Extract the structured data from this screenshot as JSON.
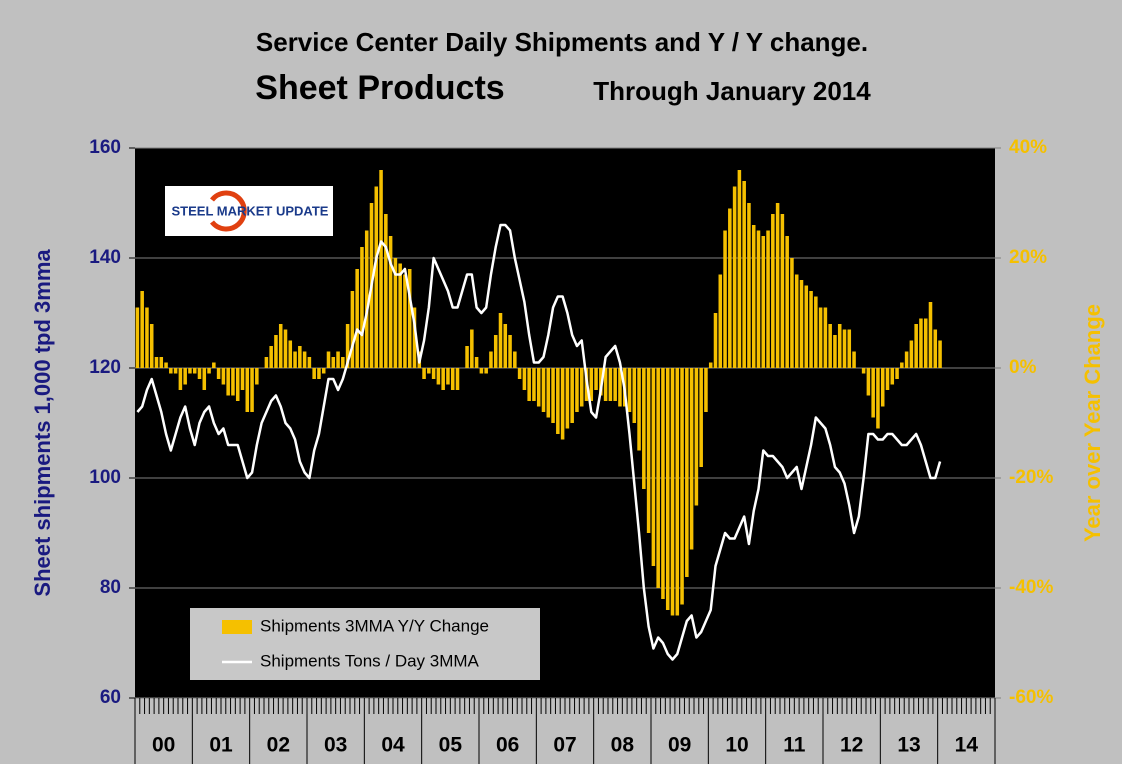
{
  "chart_data": {
    "type": "combo",
    "title": "Service Center Daily Shipments and Y / Y change.",
    "subtitle": "Sheet Products",
    "subtitle_note": "Through January 2014",
    "logo": "STEEL MARKET UPDATE",
    "ylabel": "Sheet shipments 1,000 tpd 3mma",
    "y2label": "Year over Year Change",
    "year_labels": [
      "00",
      "01",
      "02",
      "03",
      "04",
      "05",
      "06",
      "07",
      "08",
      "09",
      "10",
      "11",
      "12",
      "13",
      "14"
    ],
    "ylim": [
      60,
      160
    ],
    "yticks": [
      60,
      80,
      100,
      120,
      140,
      160
    ],
    "y2lim": [
      -60,
      40
    ],
    "y2ticks": [
      {
        "value": -60,
        "label": "-60%"
      },
      {
        "value": -40,
        "label": "-40%"
      },
      {
        "value": -20,
        "label": "-20%"
      },
      {
        "value": 0,
        "label": "0%"
      },
      {
        "value": 20,
        "label": "20%"
      },
      {
        "value": 40,
        "label": "40%"
      }
    ],
    "series": [
      {
        "name": "Shipments 3MMA Y/Y Change",
        "type": "bar",
        "axis": "y2",
        "color": "#f5c000",
        "values": [
          11,
          14,
          11,
          8,
          2,
          2,
          1,
          -1,
          -1,
          -4,
          -3,
          -1,
          -1,
          -2,
          -4,
          -1,
          1,
          -2,
          -3,
          -5,
          -5,
          -6,
          -4,
          -8,
          -8,
          -3,
          0,
          2,
          4,
          6,
          8,
          7,
          5,
          3,
          4,
          3,
          2,
          -2,
          -2,
          -1,
          3,
          2,
          3,
          2,
          8,
          14,
          18,
          22,
          25,
          30,
          33,
          36,
          28,
          24,
          20,
          19,
          17,
          18,
          11,
          3,
          -2,
          -1,
          -2,
          -3,
          -4,
          -3,
          -4,
          -4,
          0,
          4,
          7,
          2,
          -1,
          -1,
          3,
          6,
          10,
          8,
          6,
          3,
          -2,
          -4,
          -6,
          -6,
          -7,
          -8,
          -9,
          -10,
          -12,
          -13,
          -11,
          -10,
          -8,
          -7,
          -6,
          -6,
          -4,
          -5,
          -6,
          -6,
          -6,
          -7,
          -7,
          -8,
          -10,
          -15,
          -22,
          -30,
          -36,
          -40,
          -42,
          -44,
          -45,
          -45,
          -43,
          -38,
          -33,
          -25,
          -18,
          -8,
          1,
          10,
          17,
          25,
          29,
          33,
          36,
          34,
          30,
          26,
          25,
          24,
          25,
          28,
          30,
          28,
          24,
          20,
          17,
          16,
          15,
          14,
          13,
          11,
          11,
          8,
          6,
          8,
          7,
          7,
          3,
          0,
          -1,
          -5,
          -9,
          -11,
          -7,
          -4,
          -3,
          -2,
          1,
          3,
          5,
          8,
          9,
          9,
          12,
          7,
          5
        ]
      },
      {
        "name": "Shipments Tons / Day 3MMA",
        "type": "line",
        "color": "#ffffff",
        "values": [
          112,
          113,
          116,
          118,
          115,
          112,
          108,
          105,
          108,
          111,
          113,
          109,
          106,
          110,
          112,
          113,
          110,
          108,
          109,
          106,
          106,
          106,
          103,
          100,
          101,
          106,
          110,
          112,
          114,
          115,
          113,
          110,
          109,
          107,
          103,
          101,
          100,
          105,
          108,
          113,
          118,
          118,
          116,
          118,
          121,
          124,
          127,
          126,
          130,
          135,
          140,
          143,
          142,
          139,
          137,
          137,
          138,
          133,
          128,
          121,
          125,
          131,
          140,
          138,
          136,
          134,
          131,
          131,
          134,
          137,
          137,
          131,
          130,
          131,
          137,
          142,
          146,
          146,
          145,
          140,
          136,
          132,
          126,
          121,
          121,
          122,
          126,
          131,
          133,
          133,
          130,
          126,
          124,
          125,
          118,
          112,
          111,
          116,
          122,
          123,
          124,
          121,
          116,
          108,
          99,
          90,
          80,
          73,
          69,
          71,
          70,
          68,
          67,
          68,
          71,
          74,
          75,
          71,
          72,
          74,
          76,
          84,
          87,
          90,
          89,
          89,
          91,
          93,
          88,
          94,
          98,
          105,
          104,
          104,
          103,
          102,
          100,
          101,
          102,
          98,
          102,
          106,
          111,
          110,
          109,
          106,
          102,
          101,
          99,
          95,
          90,
          93,
          100,
          108,
          108,
          107,
          107,
          108,
          108,
          107,
          106,
          106,
          107,
          108,
          106,
          103,
          100,
          100,
          103
        ]
      }
    ]
  }
}
